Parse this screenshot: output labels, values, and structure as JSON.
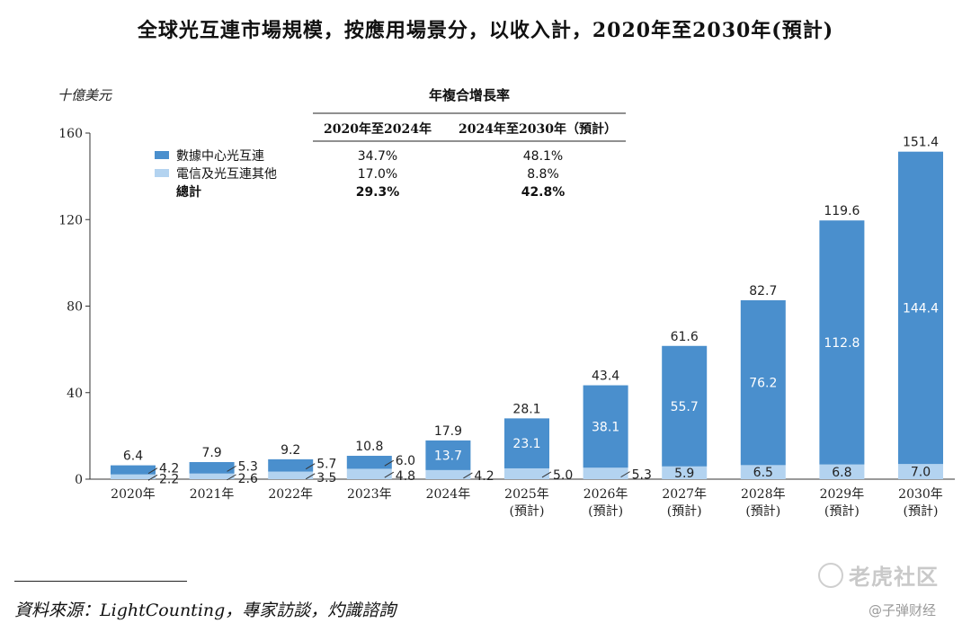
{
  "title": "全球光互連市場規模，按應用場景分，以收入計，2020年至2030年(預計)",
  "source": "資料來源：LightCounting，專家訪談，灼識諮詢",
  "watermarks": {
    "tiger": "老虎社区",
    "author": "@子弹财经"
  },
  "colors": {
    "datacenter": "#4a8fcd",
    "telecom": "#b3d3f0",
    "axis": "#333333"
  },
  "cagr_table": {
    "title": "年複合增長率",
    "headers": [
      "2020年至2024年",
      "2024年至2030年（預計）"
    ],
    "rows": [
      {
        "label": "數據中心光互連",
        "swatch": "datacenter",
        "v1": "34.7%",
        "v2": "48.1%",
        "bold": false
      },
      {
        "label": "電信及光互連其他",
        "swatch": "telecom",
        "v1": "17.0%",
        "v2": "8.8%",
        "bold": false
      },
      {
        "label": "總計",
        "swatch": null,
        "v1": "29.3%",
        "v2": "42.8%",
        "bold": true
      }
    ]
  },
  "chart_data": {
    "type": "bar",
    "stacked": true,
    "ylabel": "十億美元",
    "ylim": [
      0,
      160
    ],
    "yticks": [
      0,
      40,
      80,
      120,
      160
    ],
    "categories": [
      "2020年",
      "2021年",
      "2022年",
      "2023年",
      "2024年",
      "2025年",
      "2026年",
      "2027年",
      "2028年",
      "2029年",
      "2030年"
    ],
    "category_sublabels": [
      "",
      "",
      "",
      "",
      "",
      "(預計)",
      "(預計)",
      "(預計)",
      "(預計)",
      "(預計)",
      "(預計)"
    ],
    "series": [
      {
        "name": "電信及光互連其他",
        "color": "#b3d3f0",
        "values": [
          2.2,
          2.6,
          3.5,
          4.8,
          4.2,
          5.0,
          5.3,
          5.9,
          6.5,
          6.8,
          7.0
        ]
      },
      {
        "name": "數據中心光互連",
        "color": "#4a8fcd",
        "values": [
          4.2,
          5.3,
          5.7,
          6.0,
          13.7,
          23.1,
          38.1,
          55.7,
          76.2,
          112.8,
          144.4
        ]
      }
    ],
    "totals": [
      6.4,
      7.9,
      9.2,
      10.8,
      17.9,
      28.1,
      43.4,
      61.6,
      82.7,
      119.6,
      151.4
    ],
    "telecom_labels": [
      "2.2",
      "2.6",
      "3.5",
      "4.8",
      "4.2",
      "5.0",
      "5.3",
      "5.9",
      "6.5",
      "6.8",
      "7.0"
    ],
    "datacenter_labels": [
      "4.2",
      "5.3",
      "5.7",
      "6.0",
      "13.7",
      "23.1",
      "38.1",
      "55.7",
      "76.2",
      "112.8",
      "144.4"
    ],
    "total_labels": [
      "6.4",
      "7.9",
      "9.2",
      "10.8",
      "17.9",
      "28.1",
      "43.4",
      "61.6",
      "82.7",
      "119.6",
      "151.4"
    ]
  }
}
